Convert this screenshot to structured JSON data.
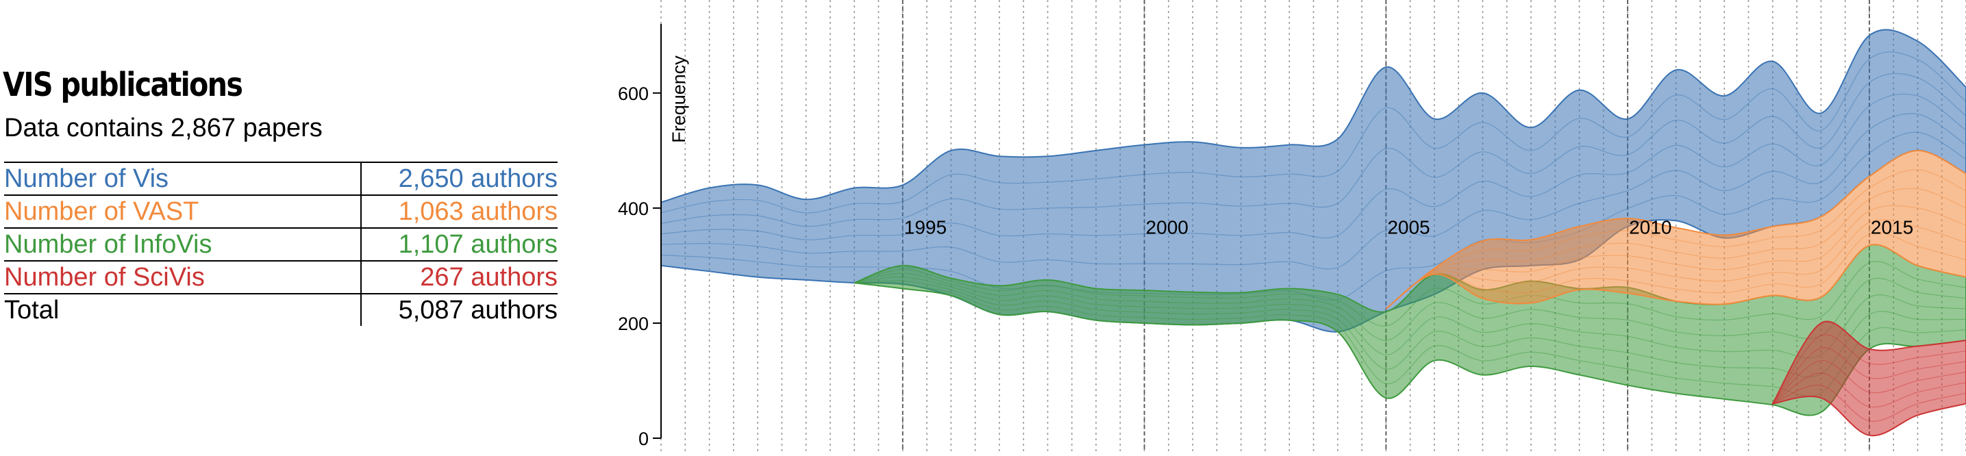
{
  "panel": {
    "title": "VIS publications",
    "subtitle": "Data contains 2,867 papers",
    "rows": [
      {
        "label": "Number of Vis",
        "value": "2,650 authors",
        "color": "#3a73b3"
      },
      {
        "label": "Number of VAST",
        "value": "1,063 authors",
        "color": "#f28a3c"
      },
      {
        "label": "Number of InfoVis",
        "value": "1,107 authors",
        "color": "#3e9a3e"
      },
      {
        "label": "Number of SciVis",
        "value": "267 authors",
        "color": "#cc3434"
      },
      {
        "label": "Total",
        "value": "5,087 authors",
        "color": "#000000"
      }
    ]
  },
  "chart_data": {
    "type": "area",
    "layout": "streamgraph",
    "ylabel": "Frequency",
    "ylim": [
      0,
      720
    ],
    "yticks": [
      0,
      200,
      400,
      600
    ],
    "x_range": [
      1990,
      2017
    ],
    "year_labels": [
      1995,
      2000,
      2005,
      2010,
      2015
    ],
    "grid": true,
    "x": [
      1990,
      1991,
      1992,
      1993,
      1994,
      1995,
      1996,
      1997,
      1998,
      1999,
      2000,
      2001,
      2002,
      2003,
      2004,
      2005,
      2006,
      2007,
      2008,
      2009,
      2010,
      2011,
      2012,
      2013,
      2014,
      2015,
      2016,
      2017
    ],
    "series": [
      {
        "color": "#cc3434",
        "values": [
          0,
          0,
          0,
          0,
          0,
          0,
          0,
          0,
          0,
          0,
          0,
          0,
          0,
          0,
          0,
          0,
          0,
          0,
          0,
          0,
          0,
          0,
          0,
          0,
          0,
          150,
          120,
          110
        ],
        "baseline": [
          0,
          0,
          0,
          0,
          0,
          0,
          0,
          0,
          0,
          0,
          0,
          0,
          0,
          0,
          0,
          0,
          0,
          0,
          0,
          0,
          0,
          0,
          0,
          0,
          0,
          5,
          40,
          60
        ]
      },
      {
        "color": "#3e9a3e",
        "values": [
          0,
          0,
          0,
          0,
          0,
          0,
          30,
          50,
          55,
          55,
          57,
          57,
          53,
          55,
          65,
          150,
          150,
          148,
          148,
          150,
          170,
          160,
          165,
          190,
          200,
          180,
          140,
          110
        ],
        "baseline": [
          0,
          0,
          0,
          0,
          0,
          0,
          248,
          215,
          220,
          205,
          200,
          197,
          200,
          205,
          185,
          70,
          135,
          110,
          125,
          110,
          92,
          78,
          68,
          58,
          45,
          155,
          160,
          170
        ]
      },
      {
        "color": "#f28a3c",
        "values": [
          0,
          0,
          0,
          0,
          0,
          0,
          0,
          0,
          0,
          0,
          0,
          0,
          0,
          0,
          0,
          0,
          10,
          100,
          110,
          110,
          130,
          128,
          120,
          120,
          140,
          120,
          200,
          180
        ],
        "baseline": [
          0,
          0,
          0,
          0,
          0,
          0,
          0,
          0,
          0,
          0,
          0,
          0,
          0,
          0,
          0,
          0,
          285,
          243,
          235,
          258,
          252,
          238,
          233,
          248,
          245,
          335,
          300,
          280
        ]
      },
      {
        "color": "#3a73b3",
        "values": [
          0,
          0,
          0,
          0,
          0,
          0,
          0,
          0,
          0,
          0,
          0,
          0,
          0,
          0,
          0,
          0,
          0,
          0,
          0,
          0,
          0,
          0,
          0,
          0,
          0,
          0,
          0,
          0
        ],
        "baseline": [
          0,
          0,
          0,
          0,
          0,
          0,
          0,
          0,
          0,
          0,
          0,
          0,
          0,
          0,
          0,
          0,
          0,
          0,
          0,
          0,
          0,
          0,
          0,
          0,
          0,
          0,
          0,
          0
        ],
        "top": [
          410,
          435,
          440,
          415,
          435,
          440,
          500,
          490,
          490,
          500,
          510,
          515,
          505,
          510,
          520,
          645,
          555,
          600,
          540,
          605,
          555,
          640,
          595,
          655,
          565,
          700,
          690,
          610
        ],
        "bottom": [
          300,
          290,
          280,
          275,
          270,
          268,
          248,
          215,
          220,
          205,
          200,
          197,
          200,
          205,
          185,
          220,
          250,
          293,
          300,
          310,
          368,
          378,
          348,
          368,
          385,
          455,
          500,
          460
        ]
      }
    ]
  }
}
